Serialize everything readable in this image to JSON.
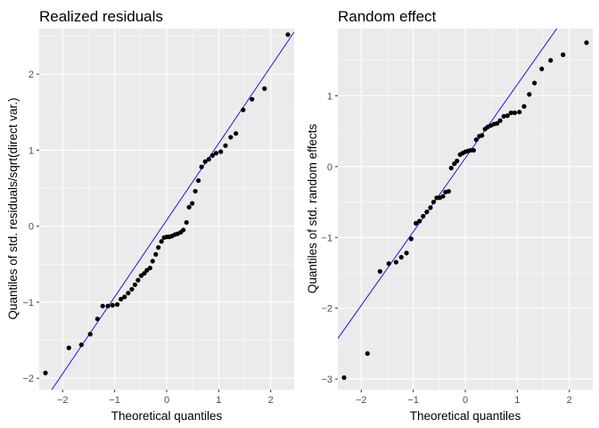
{
  "colors": {
    "panel_bg": "#EBEBEB",
    "grid_major": "#FFFFFF",
    "points": "#000000",
    "reference_line": "#0000FF",
    "tick_text": "#4D4D4D"
  },
  "chart_data": [
    {
      "type": "scatter",
      "title": "Realized residuals",
      "xlabel": "Theoretical quantiles",
      "ylabel": "Quantiles of std. residuals/sqrt(direct var.)",
      "xlim": [
        -2.45,
        2.45
      ],
      "ylim": [
        -2.15,
        2.6
      ],
      "xticks": [
        -2,
        -1,
        0,
        1,
        2
      ],
      "yticks": [
        -2,
        -1,
        0,
        1,
        2
      ],
      "grid": true,
      "reference_line": {
        "intercept": 0.08,
        "slope": 1.01
      },
      "points": [
        [
          -2.33,
          -1.93
        ],
        [
          -1.88,
          -1.6
        ],
        [
          -1.64,
          -1.56
        ],
        [
          -1.47,
          -1.42
        ],
        [
          -1.33,
          -1.22
        ],
        [
          -1.23,
          -1.05
        ],
        [
          -1.13,
          -1.05
        ],
        [
          -1.04,
          -1.04
        ],
        [
          -0.95,
          -1.03
        ],
        [
          -0.88,
          -0.96
        ],
        [
          -0.81,
          -0.93
        ],
        [
          -0.74,
          -0.88
        ],
        [
          -0.67,
          -0.83
        ],
        [
          -0.61,
          -0.77
        ],
        [
          -0.55,
          -0.71
        ],
        [
          -0.49,
          -0.65
        ],
        [
          -0.43,
          -0.62
        ],
        [
          -0.38,
          -0.58
        ],
        [
          -0.32,
          -0.55
        ],
        [
          -0.27,
          -0.46
        ],
        [
          -0.21,
          -0.37
        ],
        [
          -0.16,
          -0.28
        ],
        [
          -0.1,
          -0.2
        ],
        [
          -0.05,
          -0.15
        ],
        [
          0.0,
          -0.14
        ],
        [
          0.05,
          -0.14
        ],
        [
          0.1,
          -0.13
        ],
        [
          0.16,
          -0.11
        ],
        [
          0.21,
          -0.1
        ],
        [
          0.27,
          -0.08
        ],
        [
          0.32,
          -0.05
        ],
        [
          0.38,
          0.05
        ],
        [
          0.43,
          0.25
        ],
        [
          0.49,
          0.3
        ],
        [
          0.55,
          0.46
        ],
        [
          0.61,
          0.6
        ],
        [
          0.67,
          0.78
        ],
        [
          0.74,
          0.85
        ],
        [
          0.81,
          0.88
        ],
        [
          0.88,
          0.93
        ],
        [
          0.95,
          0.96
        ],
        [
          1.04,
          0.98
        ],
        [
          1.13,
          1.06
        ],
        [
          1.23,
          1.17
        ],
        [
          1.33,
          1.22
        ],
        [
          1.47,
          1.53
        ],
        [
          1.64,
          1.67
        ],
        [
          1.88,
          1.81
        ],
        [
          2.33,
          2.52
        ]
      ]
    },
    {
      "type": "scatter",
      "title": "Random effect",
      "xlabel": "Theoretical quantiles",
      "ylabel": "Quantiles of std. random effects",
      "xlim": [
        -2.45,
        2.45
      ],
      "ylim": [
        -3.15,
        1.95
      ],
      "xticks": [
        -2,
        -1,
        0,
        1,
        2
      ],
      "yticks": [
        -3,
        -2,
        -1,
        0,
        1
      ],
      "grid": true,
      "reference_line": {
        "intercept": 0.12,
        "slope": 1.04
      },
      "points": [
        [
          -2.33,
          -2.98
        ],
        [
          -1.88,
          -2.64
        ],
        [
          -1.64,
          -1.48
        ],
        [
          -1.47,
          -1.37
        ],
        [
          -1.33,
          -1.35
        ],
        [
          -1.23,
          -1.28
        ],
        [
          -1.13,
          -1.22
        ],
        [
          -1.04,
          -1.02
        ],
        [
          -0.95,
          -0.8
        ],
        [
          -0.88,
          -0.77
        ],
        [
          -0.81,
          -0.7
        ],
        [
          -0.74,
          -0.64
        ],
        [
          -0.67,
          -0.58
        ],
        [
          -0.61,
          -0.5
        ],
        [
          -0.55,
          -0.44
        ],
        [
          -0.49,
          -0.44
        ],
        [
          -0.43,
          -0.42
        ],
        [
          -0.38,
          -0.36
        ],
        [
          -0.32,
          -0.35
        ],
        [
          -0.27,
          -0.02
        ],
        [
          -0.21,
          0.04
        ],
        [
          -0.16,
          0.08
        ],
        [
          -0.1,
          0.17
        ],
        [
          -0.05,
          0.19
        ],
        [
          0.0,
          0.21
        ],
        [
          0.05,
          0.22
        ],
        [
          0.1,
          0.23
        ],
        [
          0.16,
          0.23
        ],
        [
          0.21,
          0.38
        ],
        [
          0.27,
          0.43
        ],
        [
          0.32,
          0.44
        ],
        [
          0.38,
          0.53
        ],
        [
          0.43,
          0.56
        ],
        [
          0.49,
          0.58
        ],
        [
          0.55,
          0.6
        ],
        [
          0.61,
          0.61
        ],
        [
          0.67,
          0.65
        ],
        [
          0.74,
          0.71
        ],
        [
          0.81,
          0.72
        ],
        [
          0.88,
          0.76
        ],
        [
          0.95,
          0.76
        ],
        [
          1.04,
          0.77
        ],
        [
          1.13,
          0.85
        ],
        [
          1.23,
          1.02
        ],
        [
          1.33,
          1.18
        ],
        [
          1.47,
          1.38
        ],
        [
          1.64,
          1.5
        ],
        [
          1.88,
          1.58
        ],
        [
          2.33,
          1.75
        ]
      ]
    }
  ]
}
